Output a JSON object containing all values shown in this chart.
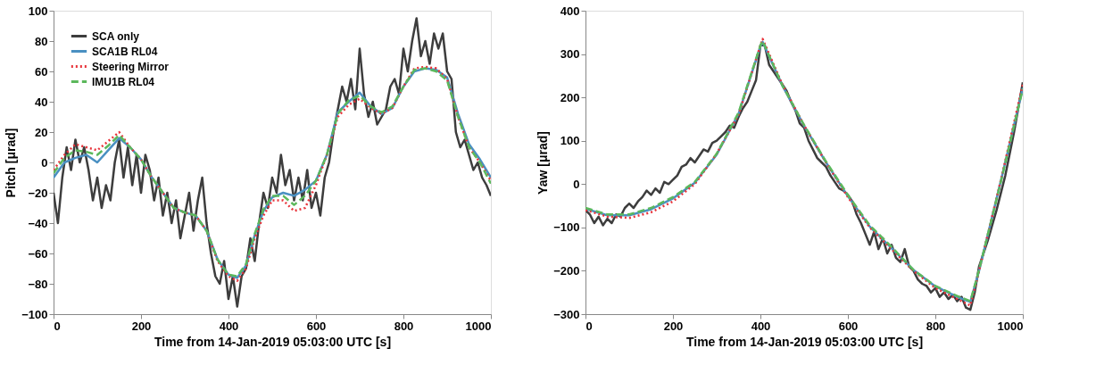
{
  "chart_data": [
    {
      "type": "line",
      "xlabel": "Time from 14-Jan-2019 05:03:00 UTC  [s]",
      "ylabel": "Pitch  [μrad]",
      "xlim": [
        0,
        1000
      ],
      "xticks": [
        0,
        200,
        400,
        600,
        800,
        1000
      ],
      "ylim": [
        -100,
        100
      ],
      "yticks": [
        -100,
        -80,
        -60,
        -40,
        -20,
        0,
        20,
        40,
        60,
        80,
        100
      ],
      "legend": "top left",
      "grid": false,
      "series": [
        {
          "name": "SCA only",
          "color": "#3d3d3d",
          "line_style": "solid",
          "x": [
            0,
            10,
            20,
            30,
            40,
            50,
            60,
            70,
            80,
            90,
            100,
            110,
            120,
            130,
            140,
            150,
            160,
            170,
            180,
            190,
            200,
            210,
            220,
            230,
            240,
            250,
            260,
            270,
            280,
            290,
            300,
            310,
            320,
            330,
            340,
            350,
            360,
            370,
            380,
            390,
            400,
            410,
            420,
            430,
            440,
            450,
            460,
            470,
            480,
            490,
            500,
            510,
            520,
            530,
            540,
            550,
            560,
            570,
            580,
            590,
            600,
            610,
            620,
            630,
            640,
            650,
            660,
            670,
            680,
            690,
            700,
            710,
            720,
            730,
            740,
            750,
            760,
            770,
            780,
            790,
            800,
            810,
            820,
            830,
            840,
            850,
            860,
            870,
            880,
            890,
            900,
            910,
            920,
            930,
            940,
            950,
            960,
            970,
            980,
            990,
            1000
          ],
          "values": [
            -20,
            -40,
            -10,
            10,
            -5,
            15,
            0,
            10,
            -5,
            -25,
            -10,
            -30,
            -15,
            -25,
            0,
            15,
            -10,
            10,
            -15,
            5,
            -20,
            5,
            -5,
            -25,
            -10,
            -35,
            -20,
            -40,
            -25,
            -50,
            -35,
            -20,
            -45,
            -25,
            -10,
            -40,
            -60,
            -75,
            -80,
            -65,
            -90,
            -75,
            -95,
            -75,
            -70,
            -50,
            -65,
            -40,
            -20,
            -30,
            -10,
            -20,
            5,
            -15,
            -5,
            -25,
            -10,
            -25,
            -5,
            -30,
            -20,
            -35,
            -10,
            0,
            20,
            35,
            50,
            40,
            55,
            35,
            75,
            45,
            30,
            40,
            25,
            30,
            35,
            50,
            55,
            45,
            75,
            60,
            80,
            95,
            70,
            80,
            65,
            85,
            75,
            85,
            60,
            55,
            20,
            10,
            15,
            5,
            -5,
            0,
            -10,
            -15,
            -22
          ]
        },
        {
          "name": "SCA1B RL04",
          "color": "#4a90c2",
          "line_style": "solid",
          "x": [
            0,
            25,
            50,
            75,
            100,
            125,
            150,
            175,
            200,
            225,
            250,
            275,
            300,
            325,
            350,
            375,
            400,
            420,
            440,
            460,
            480,
            500,
            525,
            550,
            575,
            600,
            625,
            650,
            675,
            700,
            725,
            750,
            775,
            800,
            825,
            850,
            875,
            900,
            925,
            950,
            975,
            1000
          ],
          "values": [
            -10,
            0,
            3,
            5,
            0,
            8,
            16,
            10,
            2,
            -10,
            -20,
            -30,
            -33,
            -35,
            -45,
            -64,
            -74,
            -76,
            -68,
            -48,
            -32,
            -23,
            -20,
            -22,
            -18,
            -12,
            5,
            33,
            40,
            46,
            37,
            32,
            36,
            50,
            60,
            62,
            61,
            56,
            32,
            12,
            2,
            -10
          ]
        },
        {
          "name": "Steering Mirror",
          "color": "#e8333a",
          "line_style": "dotted",
          "x": [
            0,
            25,
            50,
            75,
            100,
            125,
            150,
            175,
            200,
            225,
            250,
            275,
            300,
            325,
            350,
            375,
            400,
            420,
            440,
            460,
            480,
            500,
            525,
            550,
            575,
            600,
            625,
            650,
            675,
            700,
            725,
            750,
            775,
            800,
            825,
            850,
            875,
            900,
            925,
            950,
            975,
            1000
          ],
          "values": [
            -5,
            5,
            12,
            10,
            8,
            14,
            20,
            10,
            2,
            -10,
            -20,
            -30,
            -33,
            -35,
            -45,
            -65,
            -75,
            -78,
            -70,
            -50,
            -35,
            -25,
            -25,
            -32,
            -30,
            -15,
            5,
            30,
            38,
            42,
            36,
            32,
            36,
            50,
            62,
            63,
            62,
            55,
            30,
            10,
            0,
            -12
          ]
        },
        {
          "name": "IMU1B RL04",
          "color": "#5cb85c",
          "line_style": "dashed",
          "x": [
            0,
            25,
            50,
            75,
            100,
            125,
            150,
            175,
            200,
            225,
            250,
            275,
            300,
            325,
            350,
            375,
            400,
            420,
            440,
            460,
            480,
            500,
            525,
            550,
            575,
            600,
            625,
            650,
            675,
            700,
            725,
            750,
            775,
            800,
            825,
            850,
            875,
            900,
            925,
            950,
            975,
            1000
          ],
          "values": [
            -7,
            3,
            8,
            7,
            5,
            11,
            18,
            10,
            2,
            -10,
            -20,
            -30,
            -33,
            -35,
            -45,
            -64,
            -74,
            -75,
            -67,
            -47,
            -31,
            -22,
            -22,
            -28,
            -22,
            -12,
            5,
            32,
            41,
            44,
            37,
            33,
            37,
            50,
            61,
            62,
            60,
            54,
            30,
            10,
            0,
            -14
          ]
        }
      ]
    },
    {
      "type": "line",
      "xlabel": "Time from 14-Jan-2019 05:03:00 UTC  [s]",
      "ylabel": "Yaw  [μrad]",
      "xlim": [
        0,
        1000
      ],
      "xticks": [
        0,
        200,
        400,
        600,
        800,
        1000
      ],
      "ylim": [
        -300,
        400
      ],
      "yticks": [
        -300,
        -200,
        -100,
        0,
        100,
        200,
        300,
        400
      ],
      "legend": "top left",
      "grid": false,
      "series": [
        {
          "name": "SCA only",
          "color": "#3d3d3d",
          "line_style": "solid",
          "x": [
            0,
            10,
            20,
            30,
            40,
            50,
            60,
            70,
            80,
            90,
            100,
            110,
            120,
            130,
            140,
            150,
            160,
            170,
            180,
            190,
            200,
            210,
            220,
            230,
            240,
            250,
            260,
            270,
            280,
            290,
            300,
            310,
            320,
            330,
            340,
            350,
            360,
            370,
            380,
            390,
            400,
            410,
            420,
            430,
            440,
            450,
            460,
            470,
            480,
            490,
            500,
            510,
            520,
            530,
            540,
            550,
            560,
            570,
            580,
            590,
            600,
            610,
            620,
            630,
            640,
            650,
            660,
            670,
            680,
            690,
            700,
            710,
            720,
            730,
            740,
            750,
            760,
            770,
            780,
            790,
            800,
            810,
            820,
            830,
            840,
            850,
            860,
            870,
            880,
            890,
            900,
            920,
            940,
            960,
            980,
            1000
          ],
          "values": [
            -60,
            -70,
            -90,
            -75,
            -95,
            -80,
            -90,
            -70,
            -75,
            -55,
            -45,
            -55,
            -40,
            -30,
            -15,
            -25,
            -10,
            -20,
            5,
            0,
            10,
            20,
            40,
            45,
            60,
            50,
            65,
            80,
            75,
            95,
            100,
            110,
            120,
            135,
            130,
            155,
            175,
            190,
            215,
            240,
            320,
            320,
            275,
            260,
            245,
            230,
            215,
            190,
            170,
            140,
            130,
            100,
            80,
            60,
            50,
            40,
            20,
            5,
            -10,
            -15,
            -25,
            -40,
            -70,
            -90,
            -115,
            -140,
            -110,
            -150,
            -125,
            -160,
            -140,
            -170,
            -180,
            -150,
            -190,
            -200,
            -220,
            -230,
            -235,
            -250,
            -240,
            -260,
            -250,
            -265,
            -255,
            -270,
            -260,
            -285,
            -290,
            -250,
            -190,
            -130,
            -60,
            20,
            120,
            235
          ]
        },
        {
          "name": "SCA1B RL04",
          "color": "#4a90c2",
          "line_style": "solid",
          "x": [
            0,
            50,
            100,
            150,
            200,
            250,
            300,
            350,
            400,
            405,
            450,
            500,
            550,
            600,
            650,
            700,
            750,
            800,
            850,
            880,
            900,
            950,
            1000
          ],
          "values": [
            -57,
            -72,
            -72,
            -58,
            -33,
            3,
            68,
            162,
            318,
            328,
            228,
            134,
            50,
            -28,
            -98,
            -148,
            -198,
            -236,
            -260,
            -272,
            -200,
            8,
            222
          ]
        },
        {
          "name": "Steering Mirror",
          "color": "#e8333a",
          "line_style": "dotted",
          "x": [
            0,
            50,
            100,
            150,
            200,
            250,
            300,
            350,
            400,
            405,
            450,
            500,
            550,
            600,
            650,
            700,
            750,
            800,
            850,
            880,
            900,
            950,
            1000
          ],
          "values": [
            -60,
            -75,
            -78,
            -65,
            -40,
            0,
            70,
            160,
            320,
            335,
            230,
            135,
            50,
            -30,
            -100,
            -150,
            -200,
            -240,
            -265,
            -280,
            -200,
            10,
            230
          ]
        },
        {
          "name": "IMU1B RL04",
          "color": "#5cb85c",
          "line_style": "dashed",
          "x": [
            0,
            50,
            100,
            150,
            200,
            250,
            300,
            350,
            400,
            405,
            450,
            500,
            550,
            600,
            650,
            700,
            750,
            800,
            850,
            880,
            900,
            950,
            1000
          ],
          "values": [
            -55,
            -70,
            -70,
            -55,
            -30,
            5,
            70,
            165,
            320,
            330,
            228,
            136,
            52,
            -25,
            -95,
            -145,
            -198,
            -235,
            -258,
            -270,
            -198,
            6,
            220
          ]
        }
      ]
    }
  ]
}
